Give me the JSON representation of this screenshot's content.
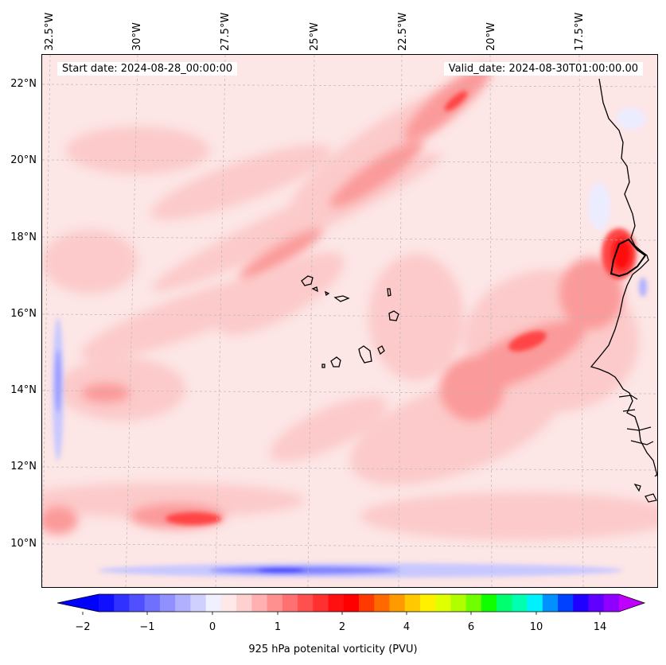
{
  "map": {
    "start_date_label": "Start date: 2024-08-28_00:00:00",
    "valid_date_label": "Valid_date: 2024-08-30T01:00:00.00",
    "longitude_labels": [
      "32.5°W",
      "30°W",
      "27.5°W",
      "25°W",
      "22.5°W",
      "20°W",
      "17.5°W"
    ],
    "latitude_labels": [
      "22°N",
      "20°N",
      "18°N",
      "16°N",
      "14°N",
      "12°N",
      "10°N"
    ],
    "field": "925 hPa potential vorticity",
    "region": "Cape Verde Islands and West African coast"
  },
  "colorbar": {
    "title": "925 hPa potenital vorticity (PVU)",
    "tick_labels": [
      "−2",
      "−1",
      "0",
      "1",
      "2",
      "4",
      "6",
      "10",
      "14"
    ],
    "tick_values": [
      -2,
      -1,
      0,
      1,
      2,
      4,
      6,
      10,
      14
    ],
    "colors": [
      "#1010ff",
      "#3030ff",
      "#5050ff",
      "#7070ff",
      "#9090ff",
      "#b0b0ff",
      "#d0d0ff",
      "#f0f0ff",
      "#ffe8e8",
      "#ffd0d0",
      "#ffb0b0",
      "#ff9090",
      "#ff7070",
      "#ff5050",
      "#ff3030",
      "#ff1010",
      "#ff0000",
      "#ff3a00",
      "#ff6a00",
      "#ff9a00",
      "#ffc800",
      "#fff000",
      "#e0ff00",
      "#b0ff00",
      "#70ff00",
      "#10ff00",
      "#00ff70",
      "#00ffb0",
      "#00f0ff",
      "#0090ff",
      "#0040ff",
      "#2000ff",
      "#6000ff",
      "#9000ff"
    ],
    "under_color": "#0000ff",
    "over_color": "#c000ff"
  }
}
